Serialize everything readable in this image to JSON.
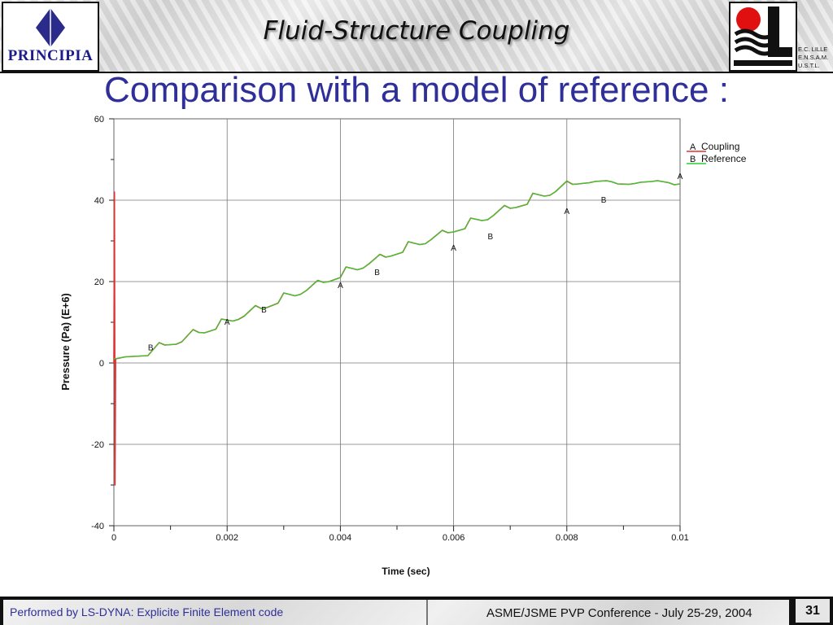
{
  "header": {
    "title": "Fluid-Structure Coupling",
    "left_logo_text": "PRINCIPIA",
    "right_logo_lines": [
      "E.C. LILLE",
      "E.N.S.A.M.",
      "U.S.T.L."
    ]
  },
  "slide": {
    "title": "Comparison with a model of reference :"
  },
  "chart_data": {
    "type": "line",
    "title": "",
    "xlabel": "Time (sec)",
    "ylabel": "Pressure (Pa) (E+6)",
    "xlim": [
      0,
      0.01
    ],
    "ylim": [
      -40,
      60
    ],
    "xticks": [
      "0",
      "0.002",
      "0.004",
      "0.006",
      "0.008",
      "0.01"
    ],
    "yticks": [
      "60",
      "40",
      "20",
      "0",
      "-20",
      "-40"
    ],
    "grid": true,
    "legend_position": "top-right",
    "series": [
      {
        "name": "Coupling",
        "marker_label": "A",
        "color": "#e03030",
        "x": [
          0,
          1e-05,
          2e-05,
          3e-05,
          0.0002,
          0.0006,
          0.0008,
          0.0009,
          0.0011,
          0.0012,
          0.0014,
          0.0015,
          0.0016,
          0.0018,
          0.0019,
          0.0021,
          0.0022,
          0.0023,
          0.0025,
          0.0026,
          0.0027,
          0.0029,
          0.003,
          0.0032,
          0.0033,
          0.0034,
          0.0036,
          0.0037,
          0.0038,
          0.004,
          0.0041,
          0.0043,
          0.0044,
          0.0045,
          0.0047,
          0.0048,
          0.0049,
          0.0051,
          0.0052,
          0.0054,
          0.0055,
          0.0056,
          0.0058,
          0.0059,
          0.006,
          0.0062,
          0.0063,
          0.0065,
          0.0066,
          0.0067,
          0.0069,
          0.007,
          0.0071,
          0.0073,
          0.0074,
          0.0076,
          0.0077,
          0.0078,
          0.008,
          0.0081,
          0.0082,
          0.0084,
          0.0085,
          0.0087,
          0.0088,
          0.0089,
          0.0091,
          0.0092,
          0.0093,
          0.0095,
          0.0096,
          0.0098,
          0.0099,
          0.01
        ],
        "y": [
          0,
          42,
          -30,
          1.0,
          1.5,
          1.8,
          5.0,
          4.4,
          4.6,
          5.2,
          8.2,
          7.5,
          7.4,
          8.3,
          10.8,
          10.3,
          10.7,
          11.5,
          14.1,
          13.4,
          13.6,
          14.7,
          17.2,
          16.5,
          16.9,
          17.8,
          20.3,
          19.8,
          20.0,
          21.0,
          23.6,
          22.9,
          23.3,
          24.3,
          26.7,
          26.0,
          26.3,
          27.2,
          29.8,
          29.1,
          29.3,
          30.3,
          32.6,
          32.0,
          32.2,
          33.0,
          35.6,
          35.0,
          35.2,
          36.2,
          38.7,
          38.0,
          38.2,
          39.0,
          41.7,
          41.0,
          41.2,
          42.1,
          44.7,
          43.9,
          44.0,
          44.3,
          44.6,
          44.8,
          44.5,
          44.0,
          43.9,
          44.1,
          44.4,
          44.6,
          44.8,
          44.3,
          43.8,
          44.0
        ]
      },
      {
        "name": "Reference",
        "marker_label": "B",
        "color": "#2fce2f",
        "x": [
          0,
          0.0002,
          0.0006,
          0.0008,
          0.0009,
          0.0011,
          0.0012,
          0.0014,
          0.0015,
          0.0016,
          0.0018,
          0.0019,
          0.0021,
          0.0022,
          0.0023,
          0.0025,
          0.0026,
          0.0027,
          0.0029,
          0.003,
          0.0032,
          0.0033,
          0.0034,
          0.0036,
          0.0037,
          0.0038,
          0.004,
          0.0041,
          0.0043,
          0.0044,
          0.0045,
          0.0047,
          0.0048,
          0.0049,
          0.0051,
          0.0052,
          0.0054,
          0.0055,
          0.0056,
          0.0058,
          0.0059,
          0.006,
          0.0062,
          0.0063,
          0.0065,
          0.0066,
          0.0067,
          0.0069,
          0.007,
          0.0071,
          0.0073,
          0.0074,
          0.0076,
          0.0077,
          0.0078,
          0.008,
          0.0081,
          0.0082,
          0.0084,
          0.0085,
          0.0087,
          0.0088,
          0.0089,
          0.0091,
          0.0092,
          0.0093,
          0.0095,
          0.0096,
          0.0098,
          0.0099,
          0.01
        ],
        "y": [
          1.0,
          1.5,
          1.8,
          5.0,
          4.4,
          4.6,
          5.2,
          8.2,
          7.5,
          7.4,
          8.3,
          10.8,
          10.3,
          10.7,
          11.5,
          14.1,
          13.4,
          13.6,
          14.7,
          17.2,
          16.5,
          16.9,
          17.8,
          20.3,
          19.8,
          20.0,
          21.0,
          23.6,
          22.9,
          23.3,
          24.3,
          26.7,
          26.0,
          26.3,
          27.2,
          29.8,
          29.1,
          29.3,
          30.3,
          32.6,
          32.0,
          32.2,
          33.0,
          35.6,
          35.0,
          35.2,
          36.2,
          38.7,
          38.0,
          38.2,
          39.0,
          41.7,
          41.0,
          41.2,
          42.1,
          44.7,
          43.9,
          44.0,
          44.3,
          44.6,
          44.8,
          44.5,
          44.0,
          43.9,
          44.1,
          44.4,
          44.6,
          44.8,
          44.3,
          43.8,
          44.0
        ]
      }
    ],
    "markers": [
      {
        "label": "B",
        "x": 0.00065,
        "y": 2.5
      },
      {
        "label": "A",
        "x": 0.002,
        "y": 8.8
      },
      {
        "label": "B",
        "x": 0.00265,
        "y": 11.8
      },
      {
        "label": "A",
        "x": 0.004,
        "y": 17.8
      },
      {
        "label": "B",
        "x": 0.00465,
        "y": 21.0
      },
      {
        "label": "A",
        "x": 0.006,
        "y": 27.0
      },
      {
        "label": "B",
        "x": 0.00665,
        "y": 29.8
      },
      {
        "label": "A",
        "x": 0.008,
        "y": 36.0
      },
      {
        "label": "B",
        "x": 0.00865,
        "y": 38.8
      },
      {
        "label": "A",
        "x": 0.01,
        "y": 44.6
      }
    ]
  },
  "footer": {
    "left_text": "Performed by LS-DYNA: Explicite Finite Element code",
    "right_text": "ASME/JSME PVP Conference - July 25-29, 2004",
    "page_number": "31"
  }
}
